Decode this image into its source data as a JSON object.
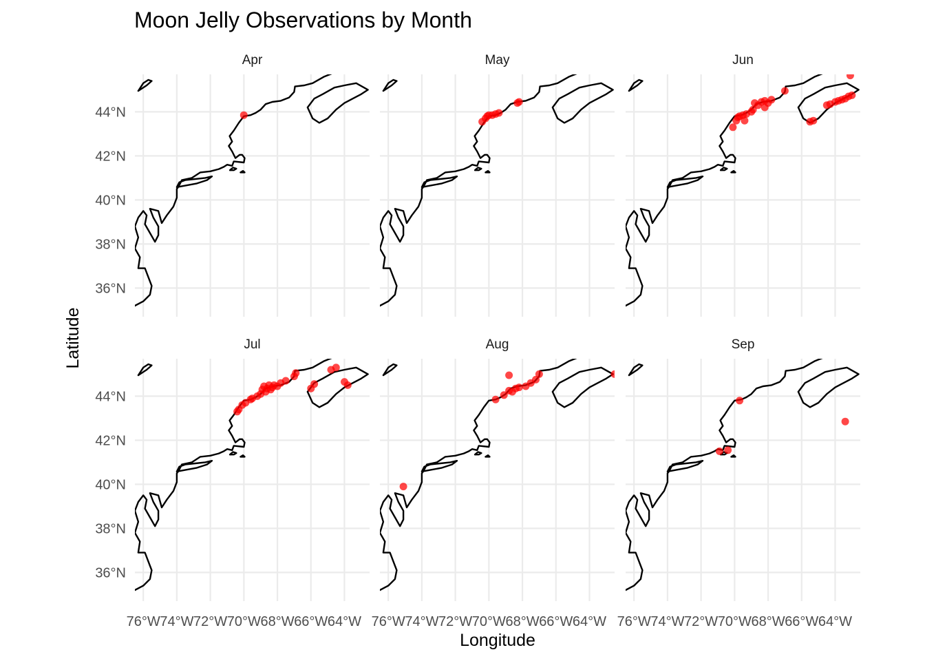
{
  "chart_data": {
    "type": "scatter",
    "title": "Moon Jelly Observations by Month",
    "xlabel": "Longitude",
    "ylabel": "Latitude",
    "xlim": [
      -76.5,
      -62.5
    ],
    "ylim": [
      34.7,
      45.7
    ],
    "x_ticks": [
      -76,
      -74,
      -72,
      -70,
      -68,
      -66,
      -64
    ],
    "x_tick_labels": [
      "76°W",
      "74°W",
      "72°W",
      "70°W",
      "68°W",
      "66°W",
      "64°W"
    ],
    "y_ticks": [
      36,
      38,
      40,
      42,
      44
    ],
    "y_tick_labels": [
      "36°N",
      "38°N",
      "40°N",
      "42°N",
      "44°N"
    ],
    "point_color": "#ff0000",
    "coastline_color": "#000000",
    "grid": true,
    "legend": "none",
    "facets": [
      {
        "label": "Apr",
        "points": [
          [
            -70.0,
            43.85
          ]
        ]
      },
      {
        "label": "May",
        "points": [
          [
            -70.4,
            43.55
          ],
          [
            -70.2,
            43.7
          ],
          [
            -70.1,
            43.8
          ],
          [
            -70.0,
            43.85
          ],
          [
            -69.8,
            43.85
          ],
          [
            -69.6,
            43.9
          ],
          [
            -69.4,
            43.95
          ],
          [
            -68.3,
            44.4
          ],
          [
            -68.2,
            44.45
          ]
        ]
      },
      {
        "label": "Jun",
        "points": [
          [
            -70.1,
            43.3
          ],
          [
            -69.9,
            43.6
          ],
          [
            -69.8,
            43.75
          ],
          [
            -69.7,
            43.8
          ],
          [
            -69.5,
            43.85
          ],
          [
            -69.4,
            43.6
          ],
          [
            -69.3,
            43.9
          ],
          [
            -69.0,
            44.0
          ],
          [
            -68.9,
            44.1
          ],
          [
            -68.8,
            44.4
          ],
          [
            -68.6,
            44.3
          ],
          [
            -68.4,
            44.45
          ],
          [
            -68.2,
            44.2
          ],
          [
            -68.2,
            44.5
          ],
          [
            -68.0,
            44.4
          ],
          [
            -67.8,
            44.55
          ],
          [
            -67.0,
            44.95
          ],
          [
            -65.5,
            43.55
          ],
          [
            -65.3,
            43.6
          ],
          [
            -64.5,
            44.3
          ],
          [
            -64.3,
            44.35
          ],
          [
            -64.0,
            44.45
          ],
          [
            -63.8,
            44.5
          ],
          [
            -63.6,
            44.55
          ],
          [
            -63.4,
            44.6
          ],
          [
            -63.2,
            44.7
          ],
          [
            -63.0,
            44.75
          ],
          [
            -63.1,
            45.65
          ]
        ]
      },
      {
        "label": "Jul",
        "points": [
          [
            -70.4,
            43.3
          ],
          [
            -70.3,
            43.4
          ],
          [
            -70.1,
            43.6
          ],
          [
            -69.9,
            43.7
          ],
          [
            -69.6,
            43.85
          ],
          [
            -69.5,
            43.9
          ],
          [
            -69.2,
            44.0
          ],
          [
            -69.0,
            44.1
          ],
          [
            -68.9,
            44.3
          ],
          [
            -68.8,
            44.45
          ],
          [
            -68.7,
            44.2
          ],
          [
            -68.6,
            44.35
          ],
          [
            -68.5,
            44.5
          ],
          [
            -68.4,
            44.3
          ],
          [
            -68.3,
            44.4
          ],
          [
            -68.2,
            44.5
          ],
          [
            -68.0,
            44.45
          ],
          [
            -67.8,
            44.6
          ],
          [
            -67.5,
            44.7
          ],
          [
            -67.0,
            44.9
          ],
          [
            -66.9,
            45.05
          ],
          [
            -66.0,
            44.35
          ],
          [
            -65.8,
            44.55
          ],
          [
            -64.8,
            45.2
          ],
          [
            -64.5,
            45.3
          ],
          [
            -64.0,
            44.65
          ],
          [
            -63.8,
            44.5
          ]
        ]
      },
      {
        "label": "Aug",
        "points": [
          [
            -75.1,
            39.9
          ],
          [
            -69.6,
            43.85
          ],
          [
            -69.1,
            44.05
          ],
          [
            -68.8,
            44.25
          ],
          [
            -68.6,
            44.2
          ],
          [
            -68.4,
            44.35
          ],
          [
            -68.2,
            44.4
          ],
          [
            -67.8,
            44.45
          ],
          [
            -67.5,
            44.6
          ],
          [
            -67.2,
            44.75
          ],
          [
            -67.0,
            45.0
          ],
          [
            -68.8,
            44.95
          ],
          [
            -62.5,
            45.0
          ]
        ]
      },
      {
        "label": "Sep",
        "points": [
          [
            -70.9,
            41.5
          ],
          [
            -70.4,
            41.55
          ],
          [
            -69.7,
            43.8
          ],
          [
            -63.4,
            42.85
          ]
        ]
      }
    ]
  }
}
